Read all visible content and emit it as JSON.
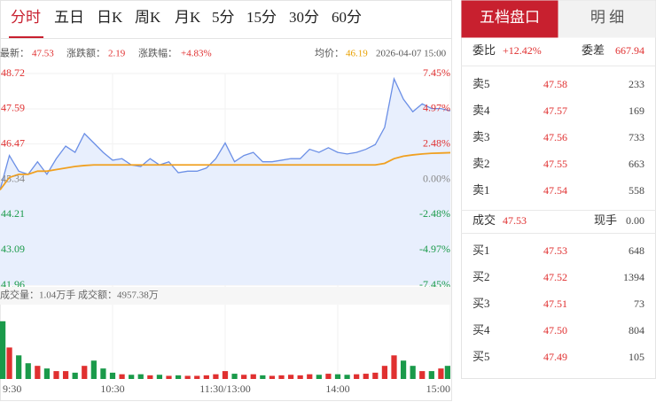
{
  "tabs": [
    "分时",
    "五日",
    "日K",
    "周K",
    "月K",
    "5分",
    "15分",
    "30分",
    "60分"
  ],
  "info": {
    "latest_label": "最新：",
    "latest": "47.53",
    "change_label": "涨跌额：",
    "change": "2.19",
    "pct_label": "涨跌幅：",
    "pct": "+4.83%",
    "avg_label": "均价：",
    "avg": "46.19",
    "time": "2026-04-07 15:00"
  },
  "volume_info": "成交量：1.04万手  成交额：4957.38万",
  "chart_data": {
    "type": "line",
    "x": [
      0,
      5,
      10,
      15,
      20,
      25,
      30,
      35,
      40,
      45,
      50,
      55,
      60,
      65,
      70,
      75,
      80,
      85,
      90,
      95,
      100,
      105,
      110,
      115,
      120,
      125,
      130,
      135,
      140,
      145,
      150,
      155,
      160,
      165,
      170,
      175,
      180,
      185,
      190,
      195,
      200,
      205,
      210,
      215,
      220,
      225,
      230,
      235,
      240
    ],
    "xlim": [
      0,
      240
    ],
    "xticks": [
      {
        "value": 0,
        "label": "9:30"
      },
      {
        "value": 60,
        "label": "10:30"
      },
      {
        "value": 120,
        "label": "11:30/13:00"
      },
      {
        "value": 180,
        "label": "14:00"
      },
      {
        "value": 240,
        "label": "15:00"
      }
    ],
    "ylim": [
      41.96,
      48.72
    ],
    "yticks": [
      48.72,
      47.59,
      46.47,
      45.34,
      44.21,
      43.09,
      41.96
    ],
    "y2lim": [
      -7.45,
      7.45
    ],
    "y2ticks": [
      {
        "value": 7.45,
        "label": "7.45%"
      },
      {
        "value": 4.97,
        "label": "4.97%"
      },
      {
        "value": 2.48,
        "label": "2.48%"
      },
      {
        "value": 0,
        "label": "0.00%"
      },
      {
        "value": -2.48,
        "label": "-2.48%"
      },
      {
        "value": -4.97,
        "label": "-4.97%"
      },
      {
        "value": -7.45,
        "label": "-7.45%"
      }
    ],
    "up_color": "#e03030",
    "down_color": "#1a9a4a",
    "flat_color": "#888888",
    "series": [
      {
        "color": "#6b8fe6",
        "values": [
          45.0,
          46.1,
          45.6,
          45.5,
          45.9,
          45.5,
          46.0,
          46.4,
          46.2,
          46.8,
          46.5,
          46.2,
          45.95,
          46.0,
          45.8,
          45.75,
          46.0,
          45.8,
          45.9,
          45.55,
          45.6,
          45.6,
          45.7,
          46.0,
          46.5,
          45.9,
          46.1,
          46.2,
          45.9,
          45.9,
          45.95,
          46.0,
          46.0,
          46.3,
          46.2,
          46.35,
          46.2,
          46.15,
          46.2,
          46.3,
          46.45,
          47.0,
          48.55,
          47.9,
          47.5,
          47.75,
          47.6,
          47.6,
          47.53
        ]
      },
      {
        "color": "#f0a020",
        "values": [
          45.0,
          45.4,
          45.5,
          45.5,
          45.6,
          45.6,
          45.65,
          45.7,
          45.75,
          45.78,
          45.8,
          45.8,
          45.8,
          45.8,
          45.8,
          45.8,
          45.8,
          45.8,
          45.8,
          45.8,
          45.8,
          45.8,
          45.8,
          45.8,
          45.8,
          45.8,
          45.8,
          45.8,
          45.8,
          45.8,
          45.8,
          45.8,
          45.8,
          45.8,
          45.8,
          45.8,
          45.8,
          45.8,
          45.8,
          45.8,
          45.8,
          45.85,
          46.0,
          46.08,
          46.12,
          46.15,
          46.17,
          46.18,
          46.19
        ]
      }
    ],
    "volume": {
      "ylim": [
        0,
        14000
      ],
      "values": [
        11000,
        6000,
        4500,
        3000,
        2500,
        2000,
        1500,
        1500,
        1200,
        2500,
        3500,
        2000,
        1200,
        900,
        800,
        900,
        700,
        800,
        600,
        700,
        600,
        600,
        700,
        900,
        1500,
        1000,
        800,
        900,
        700,
        600,
        700,
        800,
        700,
        900,
        800,
        1000,
        900,
        800,
        900,
        1000,
        1200,
        2500,
        4500,
        3500,
        2500,
        1500,
        1500,
        2000,
        2500
      ]
    }
  },
  "order_book": {
    "tabs": [
      "五档盘口",
      "明 细"
    ],
    "ratio_label": "委比",
    "ratio": "+12.42%",
    "diff_label": "委差",
    "diff": "667.94",
    "sell": [
      {
        "label": "卖5",
        "price": "47.58",
        "volume": "233"
      },
      {
        "label": "卖4",
        "price": "47.57",
        "volume": "169"
      },
      {
        "label": "卖3",
        "price": "47.56",
        "volume": "733"
      },
      {
        "label": "卖2",
        "price": "47.55",
        "volume": "663"
      },
      {
        "label": "卖1",
        "price": "47.54",
        "volume": "558"
      }
    ],
    "deal_label": "成交",
    "deal": "47.53",
    "hand_label": "现手",
    "hand": "0.00",
    "buy": [
      {
        "label": "买1",
        "price": "47.53",
        "volume": "648"
      },
      {
        "label": "买2",
        "price": "47.52",
        "volume": "1394"
      },
      {
        "label": "买3",
        "price": "47.51",
        "volume": "73"
      },
      {
        "label": "买4",
        "price": "47.50",
        "volume": "804"
      },
      {
        "label": "买5",
        "price": "47.49",
        "volume": "105"
      }
    ]
  }
}
